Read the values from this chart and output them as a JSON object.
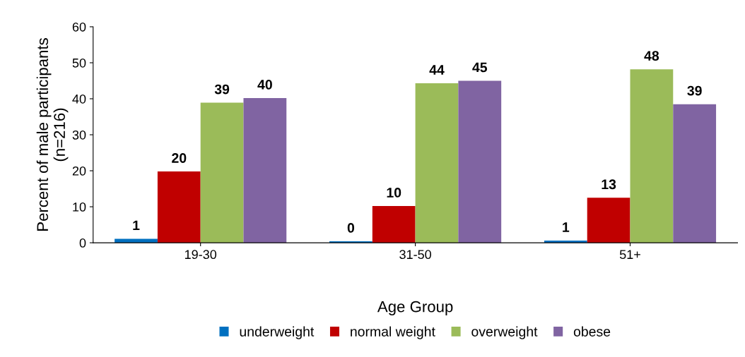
{
  "chart_data": {
    "type": "bar",
    "xlabel": "Age Group",
    "ylabel": "Percent of male participants\n(n=216)",
    "categories": [
      "19-30",
      "31-50",
      "51+"
    ],
    "series": [
      {
        "name": "underweight",
        "color": "#0070c0",
        "values": [
          1.1,
          0.4,
          0.6
        ],
        "value_labels": [
          "1",
          "0",
          "1"
        ]
      },
      {
        "name": "normal weight",
        "color": "#c00000",
        "values": [
          19.8,
          10.2,
          12.5
        ],
        "value_labels": [
          "20",
          "10",
          "13"
        ]
      },
      {
        "name": "overweight",
        "color": "#9bbb59",
        "values": [
          38.9,
          44.3,
          48.2
        ],
        "value_labels": [
          "39",
          "44",
          "48"
        ]
      },
      {
        "name": "obese",
        "color": "#8064a2",
        "values": [
          40.2,
          45.0,
          38.5
        ],
        "value_labels": [
          "40",
          "45",
          "39"
        ]
      }
    ],
    "ylim": [
      0,
      60
    ],
    "yticks": [
      0,
      10,
      20,
      30,
      40,
      50,
      60
    ],
    "grid": false,
    "legend": "bottom"
  }
}
